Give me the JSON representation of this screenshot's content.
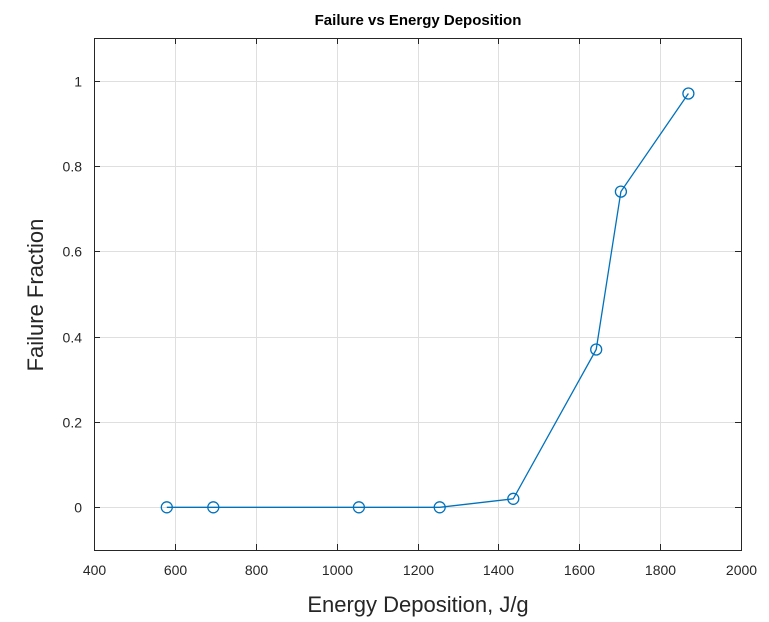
{
  "chart_data": {
    "type": "line",
    "title": "Failure vs Energy Deposition",
    "xlabel": "Energy Deposition, J/g",
    "ylabel": "Failure Fraction",
    "xlim": [
      400,
      2000
    ],
    "ylim": [
      -0.1,
      1.1
    ],
    "xticks": [
      400,
      600,
      800,
      1000,
      1200,
      1400,
      1600,
      1800,
      2000
    ],
    "yticks": [
      0,
      0.2,
      0.4,
      0.6,
      0.8,
      1
    ],
    "xtick_labels": [
      "400",
      "600",
      "800",
      "1000",
      "1200",
      "1400",
      "1600",
      "1800",
      "2000"
    ],
    "ytick_labels": [
      "0",
      "0.2",
      "0.4",
      "0.6",
      "0.8",
      "1"
    ],
    "grid": true,
    "marker": "circle",
    "series": [
      {
        "x": [
          580,
          695,
          1055,
          1255,
          1437,
          1642,
          1703,
          1870
        ],
        "y": [
          0,
          0,
          0,
          0,
          0.02,
          0.37,
          0.74,
          0.97
        ]
      }
    ],
    "colors": {
      "series": "#0072bd",
      "grid": "#dfdfdf",
      "axis": "#262626"
    }
  }
}
